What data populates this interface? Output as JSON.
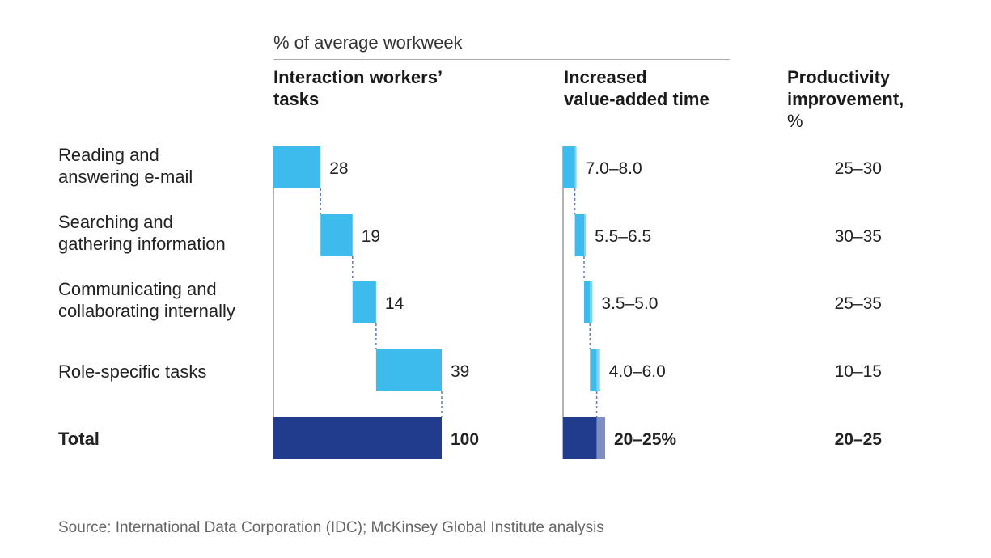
{
  "header": {
    "measure_label": "% of average workweek"
  },
  "columns": {
    "tasks": [
      "Interaction workers’",
      "tasks"
    ],
    "value_added": [
      "Increased",
      "value-added time"
    ],
    "productivity": [
      "Productivity",
      "improvement,",
      "%"
    ]
  },
  "source": "Source: International Data Corporation (IDC); McKinsey Global Institute analysis",
  "colors": {
    "bar": "#3dbbec",
    "bar_light": "#7fd3f3",
    "total": "#213c8c",
    "total_light": "#7c8cc5",
    "connector": "#5a7fb5",
    "axis": "#9a9a9a"
  },
  "chart_data": {
    "type": "bar",
    "subtype": "waterfall",
    "categories": [
      [
        "Reading and",
        "answering e-mail"
      ],
      [
        "Searching and",
        "gathering information"
      ],
      [
        "Communicating and",
        "collaborating internally"
      ],
      [
        "Role-specific tasks"
      ]
    ],
    "total_label": "Total",
    "tasks_share": {
      "values": [
        28,
        19,
        14,
        39
      ],
      "labels": [
        "28",
        "19",
        "14",
        "39"
      ],
      "total": 100,
      "total_label": "100"
    },
    "value_added_time": {
      "ranges": [
        [
          7.0,
          8.0
        ],
        [
          5.5,
          6.5
        ],
        [
          3.5,
          5.0
        ],
        [
          4.0,
          6.0
        ]
      ],
      "labels": [
        "7.0–8.0",
        "5.5–6.5",
        "3.5–5.0",
        "4.0–6.0"
      ],
      "total_range": [
        20,
        25
      ],
      "total_label": "20–25%"
    },
    "productivity_improvement": {
      "labels": [
        "25–30",
        "30–35",
        "25–35",
        "10–15"
      ],
      "total_label": "20–25"
    }
  }
}
